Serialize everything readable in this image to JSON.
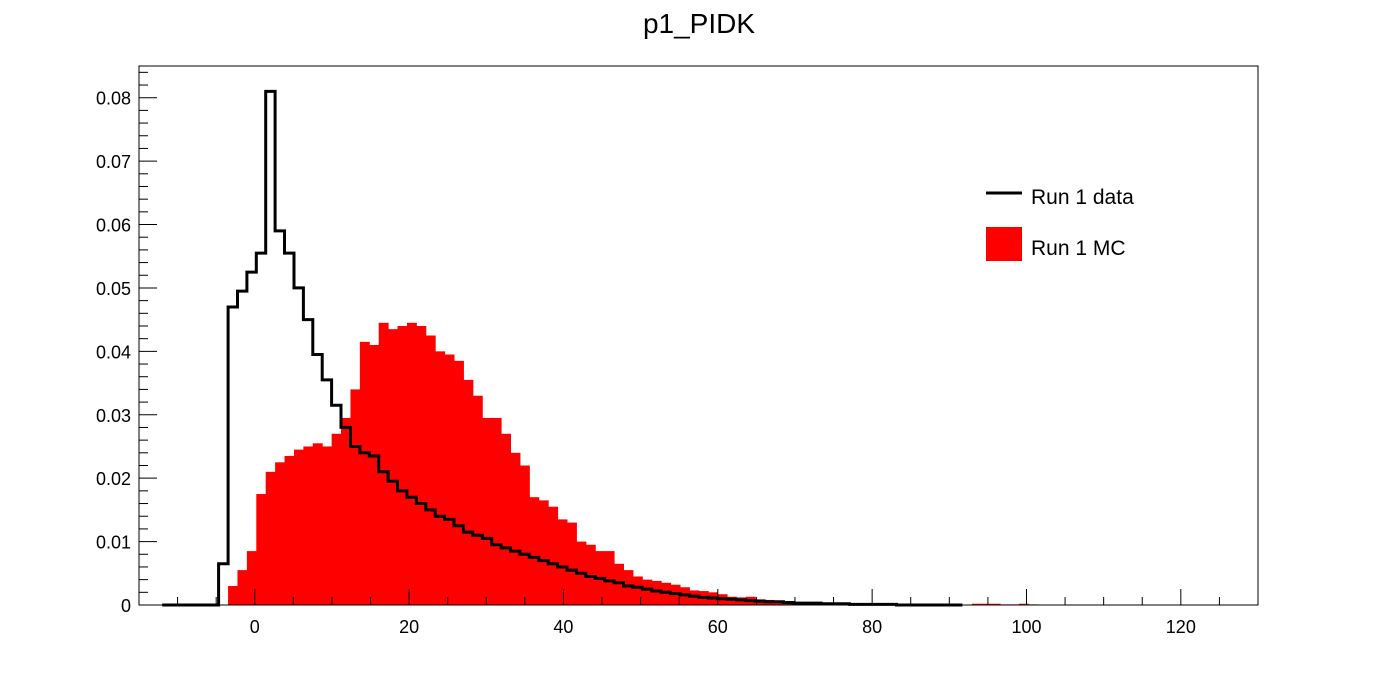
{
  "chart_data": {
    "type": "histogram",
    "title": "p1_PIDK",
    "xlabel": "",
    "ylabel": "",
    "xlim": [
      -15,
      130
    ],
    "ylim": [
      0,
      0.085
    ],
    "x_ticks": [
      0,
      20,
      40,
      60,
      80,
      100,
      120
    ],
    "y_ticks": [
      0,
      0.01,
      0.02,
      0.03,
      0.04,
      0.05,
      0.06,
      0.07,
      0.08
    ],
    "x_tick_labels": [
      "0",
      "20",
      "40",
      "60",
      "80",
      "100",
      "120"
    ],
    "y_tick_labels": [
      "0",
      "0.01",
      "0.02",
      "0.03",
      "0.04",
      "0.05",
      "0.06",
      "0.07",
      "0.08"
    ],
    "grid": false,
    "legend_position": "top-right",
    "bin_start": -12,
    "bin_width": 1.22,
    "series": [
      {
        "name": "Run 1 MC",
        "style": "filled",
        "color": "#ff0000",
        "values": [
          0,
          0,
          0,
          0,
          0,
          0,
          0,
          0.003,
          0.0055,
          0.0085,
          0.0175,
          0.021,
          0.0225,
          0.0235,
          0.0245,
          0.025,
          0.0255,
          0.025,
          0.027,
          0.0295,
          0.034,
          0.0415,
          0.041,
          0.0445,
          0.0435,
          0.044,
          0.0445,
          0.044,
          0.0425,
          0.04,
          0.0395,
          0.0385,
          0.0355,
          0.033,
          0.0295,
          0.0295,
          0.027,
          0.024,
          0.022,
          0.017,
          0.0165,
          0.0155,
          0.0135,
          0.013,
          0.01,
          0.0095,
          0.0085,
          0.0085,
          0.0065,
          0.0055,
          0.0045,
          0.004,
          0.0038,
          0.0035,
          0.0032,
          0.0028,
          0.0023,
          0.0022,
          0.002,
          0.0017,
          0.0013,
          0.0012,
          0.0013,
          0.0009,
          0.0008,
          0.0007,
          0.0006,
          0.0004,
          0.0004,
          0.0003,
          0.0003,
          0.0003,
          0.0002,
          0.0001,
          0.0001,
          0.0001,
          0.0001,
          0.0001,
          0,
          0,
          0,
          0,
          0,
          0,
          0,
          0,
          0.0002,
          0.0002,
          0.0002,
          0.0001,
          0.0001,
          0.0002,
          0.0001,
          0,
          0,
          0,
          0,
          0,
          0,
          0,
          0,
          0,
          0,
          0,
          0,
          0,
          0,
          0,
          0,
          0,
          0,
          0,
          0,
          0
        ]
      },
      {
        "name": "Run 1 data",
        "style": "step",
        "color": "#000000",
        "values": [
          0,
          0,
          0,
          0,
          0,
          0,
          0.0065,
          0.047,
          0.0495,
          0.0525,
          0.0555,
          0.081,
          0.059,
          0.0555,
          0.05,
          0.045,
          0.0395,
          0.0355,
          0.0315,
          0.028,
          0.025,
          0.024,
          0.0235,
          0.021,
          0.0195,
          0.018,
          0.017,
          0.016,
          0.015,
          0.014,
          0.0135,
          0.0125,
          0.0115,
          0.011,
          0.0105,
          0.0095,
          0.009,
          0.0085,
          0.008,
          0.0075,
          0.007,
          0.0065,
          0.006,
          0.0055,
          0.005,
          0.0045,
          0.0042,
          0.0038,
          0.0035,
          0.003,
          0.0028,
          0.0025,
          0.0022,
          0.002,
          0.0018,
          0.0016,
          0.0014,
          0.0012,
          0.0011,
          0.001,
          0.0009,
          0.0008,
          0.0007,
          0.0006,
          0.0005,
          0.0005,
          0.0004,
          0.0003,
          0.0003,
          0.0003,
          0.0002,
          0.0002,
          0.0002,
          0.0001,
          0.0001,
          0.0001,
          0.0001,
          0.0001,
          0,
          0,
          0,
          0,
          0,
          0,
          0
        ]
      }
    ]
  }
}
